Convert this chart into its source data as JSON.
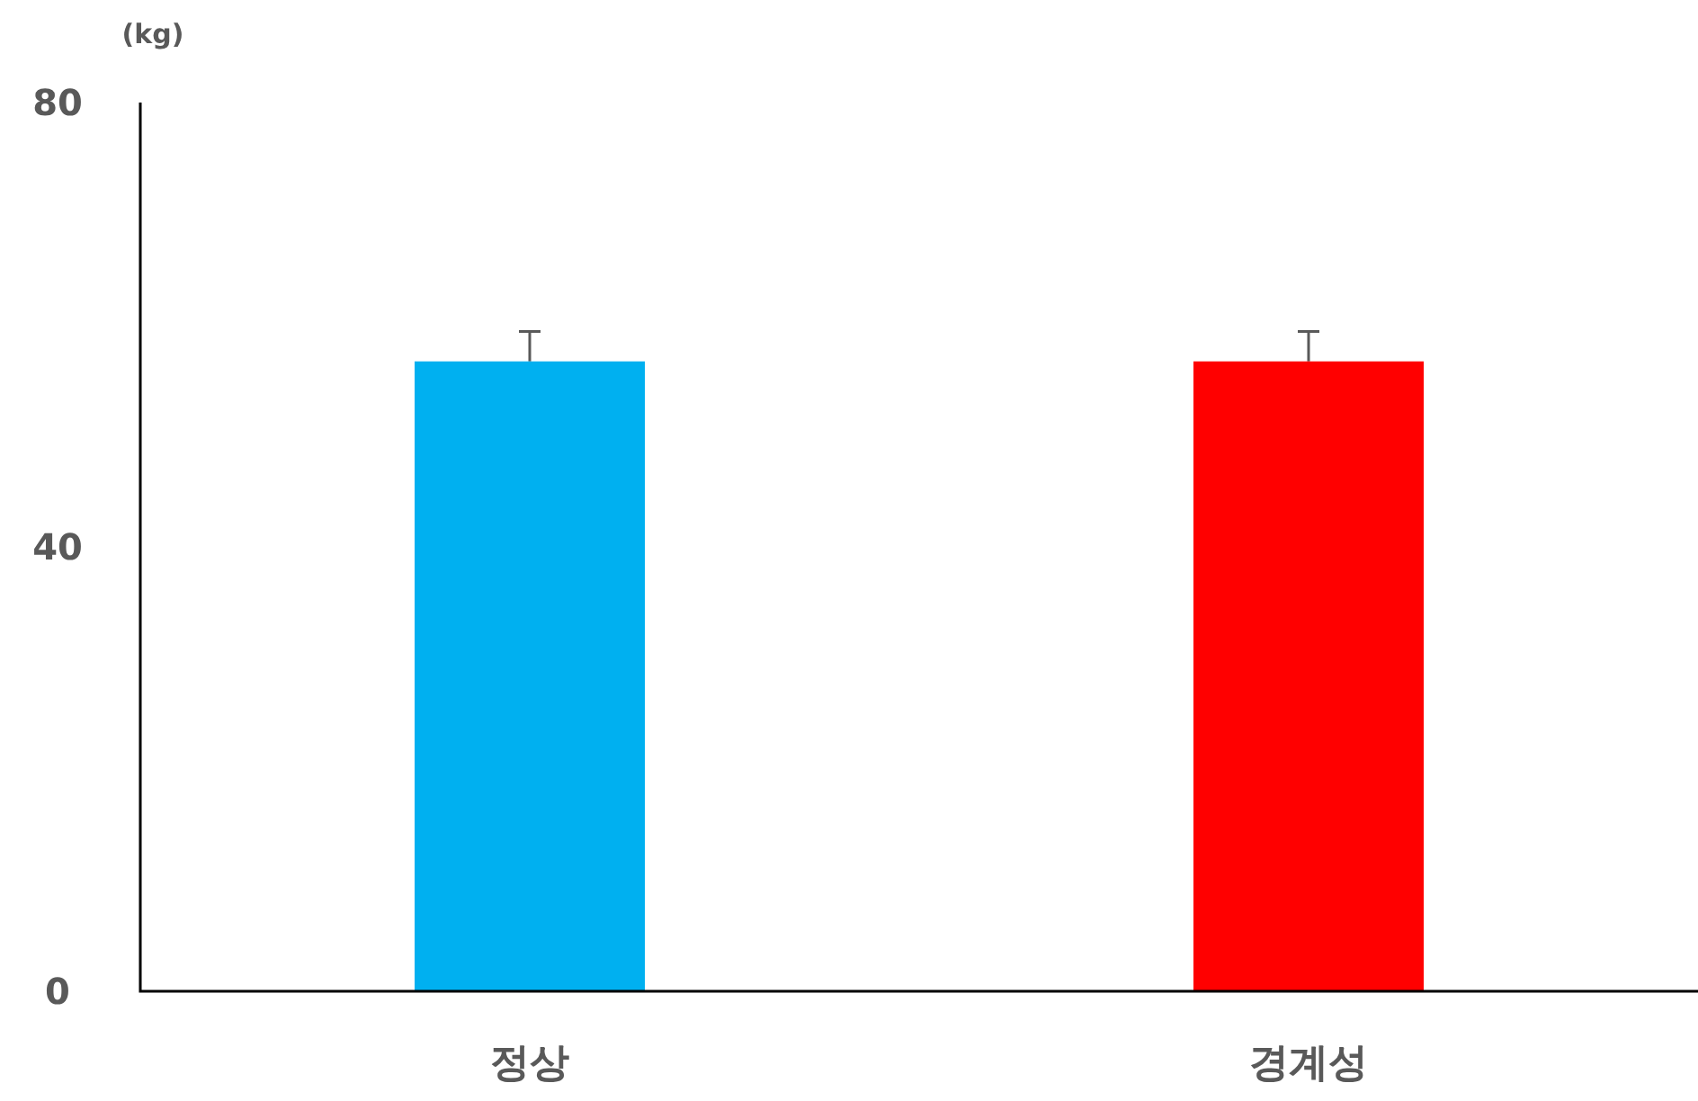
{
  "chart_data": {
    "type": "bar",
    "ylabel": "(kg)",
    "categories": [
      "정상",
      "경계성"
    ],
    "values": [
      56.7,
      56.7
    ],
    "colors": [
      "#00b0f0",
      "#ff0000"
    ],
    "errors": [
      [
        56.7,
        59.4
      ],
      [
        56.7,
        59.4
      ]
    ],
    "ylim": [
      0,
      80
    ],
    "yticks": [
      0,
      40,
      80
    ],
    "grid": false
  }
}
